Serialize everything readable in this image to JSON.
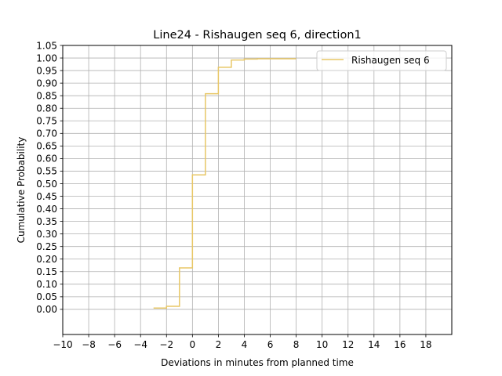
{
  "chart_data": {
    "type": "line",
    "step": "post",
    "title": "Line24 - Rishaugen seq 6, direction1",
    "xlabel": "Deviations in minutes from planned time",
    "ylabel": "Cumulative Probability",
    "xlim": [
      -10,
      20
    ],
    "ylim": [
      -0.1,
      1.05
    ],
    "xticks": [
      -10,
      -8,
      -6,
      -4,
      -2,
      0,
      2,
      4,
      6,
      8,
      10,
      12,
      14,
      16,
      18
    ],
    "xtick_labels": [
      "−10",
      "−8",
      "−6",
      "−4",
      "−2",
      "0",
      "2",
      "4",
      "6",
      "8",
      "10",
      "12",
      "14",
      "16",
      "18"
    ],
    "yticks": [
      0.0,
      0.05,
      0.1,
      0.15,
      0.2,
      0.25,
      0.3,
      0.35,
      0.4,
      0.45,
      0.5,
      0.55,
      0.6,
      0.65,
      0.7,
      0.75,
      0.8,
      0.85,
      0.9,
      0.95,
      1.0,
      1.05
    ],
    "ytick_labels": [
      "0.00",
      "0.05",
      "0.10",
      "0.15",
      "0.20",
      "0.25",
      "0.30",
      "0.35",
      "0.40",
      "0.45",
      "0.50",
      "0.55",
      "0.60",
      "0.65",
      "0.70",
      "0.75",
      "0.80",
      "0.85",
      "0.90",
      "0.95",
      "1.00",
      "1.05"
    ],
    "grid": true,
    "legend_position": "top-right",
    "series": [
      {
        "name": "Rishaugen seq 6",
        "color": "#e8c766",
        "x": [
          -3,
          -2,
          -1,
          0,
          1,
          2,
          3,
          4,
          5,
          6,
          7,
          8
        ],
        "y": [
          0.005,
          0.012,
          0.165,
          0.535,
          0.858,
          0.963,
          0.992,
          0.996,
          0.997,
          0.997,
          0.997,
          0.997
        ]
      }
    ]
  }
}
